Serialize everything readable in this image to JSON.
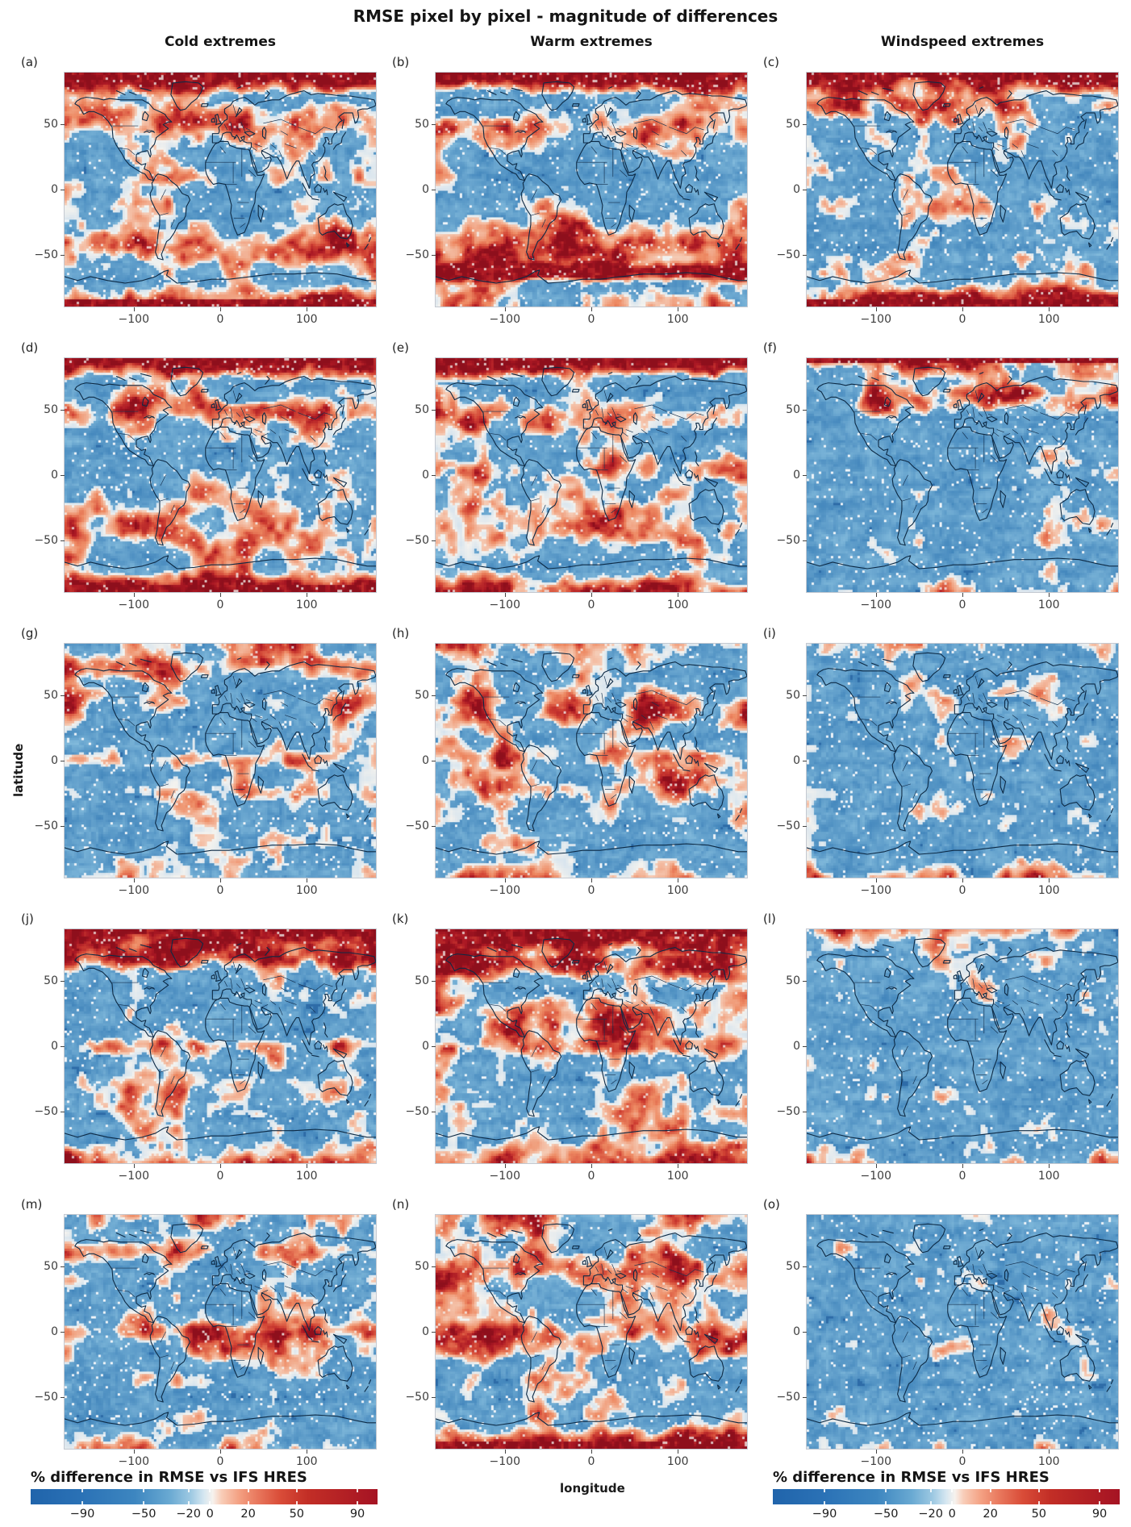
{
  "figure": {
    "title": "RMSE pixel by pixel - magnitude of differences"
  },
  "chart_data": {
    "type": "heatmap",
    "title": "RMSE pixel by pixel - magnitude of differences",
    "layout": "grid of 15 world maps, 5 rows x 3 columns, equirectangular projection with coastlines and country borders, pixelated diverging red/blue fields",
    "columns": [
      "Cold extremes",
      "Warm extremes",
      "Windspeed extremes"
    ],
    "xlabel": "longitude",
    "ylabel": "latitude",
    "axes": {
      "xticks": [
        -100,
        0,
        100
      ],
      "yticks": [
        50,
        0,
        -50
      ],
      "xlim": [
        -180,
        180
      ],
      "ylim": [
        -90,
        90
      ],
      "grid": false
    },
    "colorbar": {
      "label": "% difference in RMSE vs IFS HRES",
      "ticks": [
        -90,
        -50,
        -20,
        0,
        20,
        50,
        90
      ],
      "tick_positions_pct": [
        14.9,
        32.6,
        45.5,
        51.7,
        62.7,
        76.7,
        94.2
      ],
      "range": [
        -100,
        100
      ],
      "scale": "diverging (RdBu): blue = negative (lower RMSE), red = positive (higher RMSE)",
      "position": "two horizontal bars at bottom-left and bottom-right",
      "gradient_stops": [
        [
          0,
          "#2064ab"
        ],
        [
          15,
          "#2b72b6"
        ],
        [
          30,
          "#3d86c0"
        ],
        [
          40,
          "#69a9d2"
        ],
        [
          46,
          "#9cc8e2"
        ],
        [
          50,
          "#d6e7f1"
        ],
        [
          52.5,
          "#f7f2ee"
        ],
        [
          55,
          "#f8cdb8"
        ],
        [
          60,
          "#f4a183"
        ],
        [
          65,
          "#e97a5f"
        ],
        [
          72,
          "#d94c38"
        ],
        [
          80,
          "#c22e26"
        ],
        [
          100,
          "#a51323"
        ]
      ]
    },
    "panels": [
      {
        "label": "(a)",
        "column": "Cold extremes",
        "row": 1,
        "description": "widespread red: N Atlantic/Europe, SH mid-latitude band, solid red polar cap strip top and bottom",
        "render": {
          "seed": 11,
          "red": 0.3,
          "top": 0.95,
          "bottom": 0.55,
          "bands": [
            [
              55,
              14,
              0.3
            ],
            [
              -45,
              16,
              0.3
            ],
            [
              8,
              6,
              0.12
            ]
          ]
        }
      },
      {
        "label": "(b)",
        "column": "Warm extremes",
        "row": 1,
        "description": "heavy red: dark top band, N Atlantic blob, strong red over Southern Ocean and S America",
        "render": {
          "seed": 22,
          "red": 0.35,
          "top": 0.9,
          "bottom": 0.2,
          "bands": [
            [
              45,
              14,
              0.3
            ],
            [
              -45,
              20,
              0.35
            ],
            [
              -64,
              6,
              0.6
            ]
          ]
        }
      },
      {
        "label": "(c)",
        "column": "Windspeed extremes",
        "row": 1,
        "description": "moderate red speckle, red Arctic band at top and red strip at bottom edge",
        "render": {
          "seed": 33,
          "red": 0.2,
          "top": 0.85,
          "bottom": 0.75,
          "bands": [
            [
              66,
              12,
              0.3
            ]
          ]
        }
      },
      {
        "label": "(d)",
        "column": "Cold extremes",
        "row": 2,
        "description": "thin dark red top band, red bottom band, red patches in NH mid-latitudes and southern tropics",
        "render": {
          "seed": 44,
          "red": 0.24,
          "top": 0.9,
          "bottom": 0.85,
          "bands": [
            [
              50,
              12,
              0.28
            ],
            [
              -42,
              20,
              0.28
            ]
          ]
        }
      },
      {
        "label": "(e)",
        "column": "Warm extremes",
        "row": 2,
        "description": "dark red top band, red over Atlantic/Africa and southern mid-latitudes",
        "render": {
          "seed": 55,
          "red": 0.28,
          "top": 0.95,
          "bottom": 0.45,
          "bands": [
            [
              46,
              16,
              0.28
            ],
            [
              -40,
              18,
              0.28
            ],
            [
              4,
              8,
              0.18
            ]
          ]
        }
      },
      {
        "label": "(f)",
        "column": "Windspeed extremes",
        "row": 2,
        "description": "mostly blue, red patch top-left Arctic, sparse red speckle",
        "render": {
          "seed": 66,
          "red": 0.16,
          "top": 0.6,
          "bottom": 0.3,
          "bands": [
            [
              60,
              12,
              0.28
            ]
          ]
        }
      },
      {
        "label": "(g)",
        "column": "Cold extremes",
        "row": 3,
        "description": "blue top, red patches over Greenland/Arctic Russia, NH mid-latitudes and equator",
        "render": {
          "seed": 77,
          "red": 0.22,
          "top": 0.2,
          "bottom": 0.25,
          "bands": [
            [
              72,
              10,
              0.35
            ],
            [
              44,
              10,
              0.25
            ],
            [
              0,
              7,
              0.2
            ],
            [
              -25,
              9,
              0.15
            ]
          ]
        }
      },
      {
        "label": "(h)",
        "column": "Warm extremes",
        "row": 3,
        "description": "moderate-heavy red patches over continents and tropics, blue poles",
        "render": {
          "seed": 88,
          "red": 0.26,
          "top": 0.25,
          "bottom": 0.3,
          "bands": [
            [
              40,
              13,
              0.28
            ],
            [
              -20,
              13,
              0.2
            ],
            [
              4,
              8,
              0.2
            ]
          ]
        }
      },
      {
        "label": "(i)",
        "column": "Windspeed extremes",
        "row": 3,
        "description": "mostly blue with sparse small red patches",
        "render": {
          "seed": 99,
          "red": 0.13,
          "top": 0.2,
          "bottom": 0.25,
          "bands": [
            [
              55,
              9,
              0.12
            ]
          ]
        }
      },
      {
        "label": "(j)",
        "column": "Cold extremes",
        "row": 4,
        "description": "red Arctic band near top, scattered red elsewhere, bottom band light red",
        "render": {
          "seed": 111,
          "red": 0.23,
          "top": 0.85,
          "bottom": 0.5,
          "bands": [
            [
              70,
              10,
              0.45
            ],
            [
              0,
              7,
              0.18
            ],
            [
              -30,
              9,
              0.12
            ]
          ]
        }
      },
      {
        "label": "(k)",
        "column": "Warm extremes",
        "row": 4,
        "description": "heavy red: dark top band, large red blobs across NH and tropics",
        "render": {
          "seed": 122,
          "red": 0.33,
          "top": 0.9,
          "bottom": 0.35,
          "bands": [
            [
              64,
              12,
              0.45
            ],
            [
              28,
              16,
              0.25
            ],
            [
              0,
              9,
              0.2
            ]
          ]
        }
      },
      {
        "label": "(l)",
        "column": "Windspeed extremes",
        "row": 4,
        "description": "almost entirely blue, faint red speckle",
        "render": {
          "seed": 133,
          "red": 0.09,
          "top": 0.25,
          "bottom": 0.2,
          "bands": [
            [
              70,
              8,
              0.1
            ]
          ]
        }
      },
      {
        "label": "(m)",
        "column": "Cold extremes",
        "row": 5,
        "description": "red equatorial E Pacific band, NE Asia patches, blue Southern Ocean",
        "render": {
          "seed": 144,
          "red": 0.2,
          "top": 0.3,
          "bottom": 0.2,
          "bands": [
            [
              62,
              10,
              0.28
            ],
            [
              0,
              8,
              0.32
            ],
            [
              -14,
              8,
              0.16
            ],
            [
              -55,
              12,
              -0.18
            ]
          ]
        }
      },
      {
        "label": "(n)",
        "column": "Warm extremes",
        "row": 5,
        "description": "heavy red NH mid-latitudes and tropics, red bottom band",
        "render": {
          "seed": 155,
          "red": 0.3,
          "top": 0.35,
          "bottom": 0.75,
          "bands": [
            [
              45,
              16,
              0.35
            ],
            [
              -5,
              12,
              0.25
            ]
          ]
        }
      },
      {
        "label": "(o)",
        "column": "Windspeed extremes",
        "row": 5,
        "description": "essentially all blue, tiny red speckles near tropics",
        "render": {
          "seed": 166,
          "red": 0.05,
          "top": 0.08,
          "bottom": 0.08,
          "bands": [
            [
              8,
              8,
              0.06
            ]
          ]
        }
      }
    ]
  }
}
